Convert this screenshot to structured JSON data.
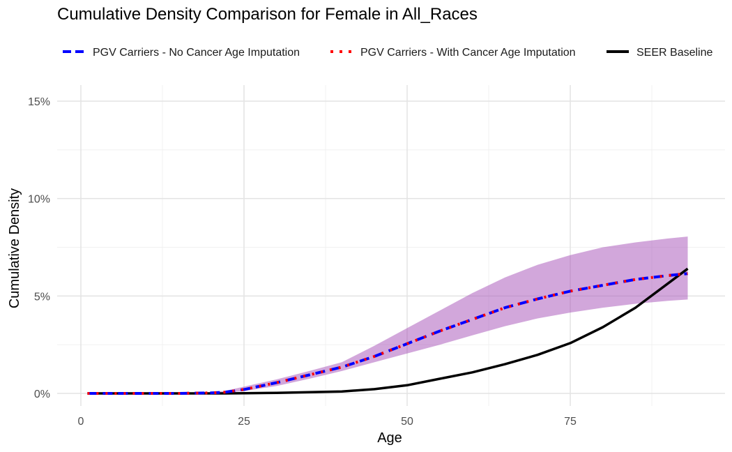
{
  "chart_data": {
    "type": "line",
    "title": "Cumulative Density Comparison for Female in All_Races",
    "xlabel": "Age",
    "ylabel": "Cumulative Density",
    "xlim": [
      1,
      93
    ],
    "ylim": [
      0,
      0.15
    ],
    "x_ticks": [
      0,
      25,
      50,
      75
    ],
    "x_tick_labels": [
      "0",
      "25",
      "50",
      "75"
    ],
    "y_ticks": [
      0,
      0.05,
      0.1,
      0.15
    ],
    "y_tick_labels": [
      "0%",
      "5%",
      "10%",
      "15%"
    ],
    "grid": true,
    "legend_position": "top",
    "x": [
      1,
      5,
      10,
      15,
      20,
      22,
      25,
      30,
      35,
      40,
      45,
      50,
      55,
      60,
      65,
      70,
      75,
      80,
      85,
      90,
      93
    ],
    "band": {
      "lower": [
        0,
        0,
        0,
        0,
        0.0002,
        0.0004,
        0.0012,
        0.0038,
        0.0075,
        0.0115,
        0.016,
        0.0205,
        0.025,
        0.0298,
        0.0345,
        0.0385,
        0.0415,
        0.044,
        0.046,
        0.0475,
        0.0482
      ],
      "upper": [
        0,
        0,
        0,
        0,
        0.0006,
        0.0012,
        0.0035,
        0.0072,
        0.0115,
        0.016,
        0.0245,
        0.0335,
        0.0425,
        0.0515,
        0.0595,
        0.066,
        0.071,
        0.075,
        0.0775,
        0.0795,
        0.0805
      ],
      "color": "#a64fb8"
    },
    "series": [
      {
        "name": "PGV Carriers - No Cancer Age Imputation",
        "color": "#0000ff",
        "style": "dashed",
        "values": [
          0,
          0,
          0,
          0,
          0.0003,
          0.0006,
          0.002,
          0.0055,
          0.0095,
          0.0135,
          0.019,
          0.0255,
          0.032,
          0.038,
          0.044,
          0.0485,
          0.0525,
          0.0555,
          0.0585,
          0.0605,
          0.0615
        ]
      },
      {
        "name": "PGV Carriers - With Cancer Age Imputation",
        "color": "#ff0000",
        "style": "dotted",
        "values": [
          0,
          0,
          0,
          0,
          0.0003,
          0.0006,
          0.002,
          0.0055,
          0.0095,
          0.0135,
          0.019,
          0.0255,
          0.032,
          0.038,
          0.044,
          0.0485,
          0.0525,
          0.0555,
          0.0585,
          0.0605,
          0.0615
        ]
      },
      {
        "name": "SEER Baseline",
        "color": "#000000",
        "style": "solid",
        "values": [
          0,
          0,
          0,
          0,
          0,
          0,
          0.0001,
          0.0003,
          0.0006,
          0.001,
          0.0022,
          0.0042,
          0.0075,
          0.0108,
          0.015,
          0.0198,
          0.0258,
          0.034,
          0.044,
          0.0565,
          0.064
        ]
      }
    ]
  }
}
